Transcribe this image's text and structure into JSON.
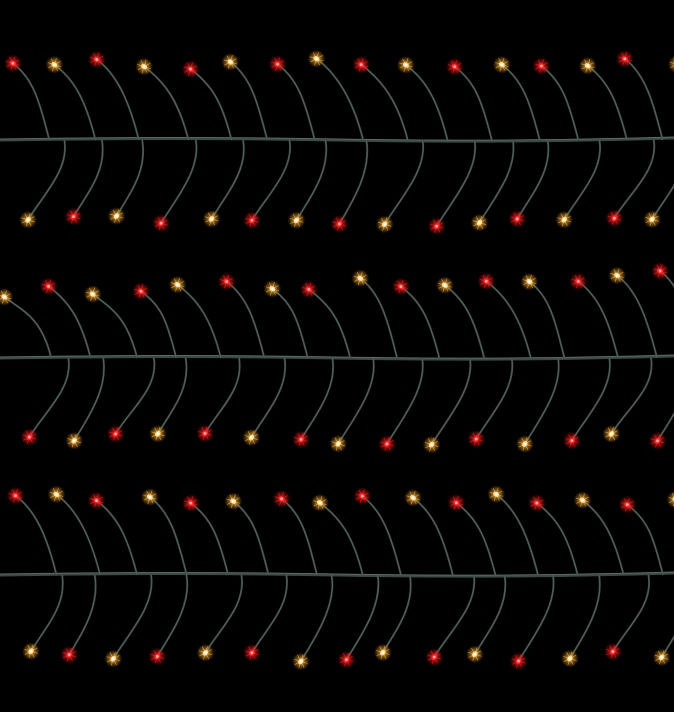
{
  "photo": {
    "subject": "string-lights",
    "rows": 3,
    "colors": {
      "background": "#000000",
      "wire": "#3c4a44",
      "wire_highlight": "#7f8f8a",
      "bulb_red": "#ff2b2b",
      "bulb_warm": "#ffd98a",
      "glow_red": "#ff1a1a",
      "glow_warm": "#ffb347"
    }
  }
}
